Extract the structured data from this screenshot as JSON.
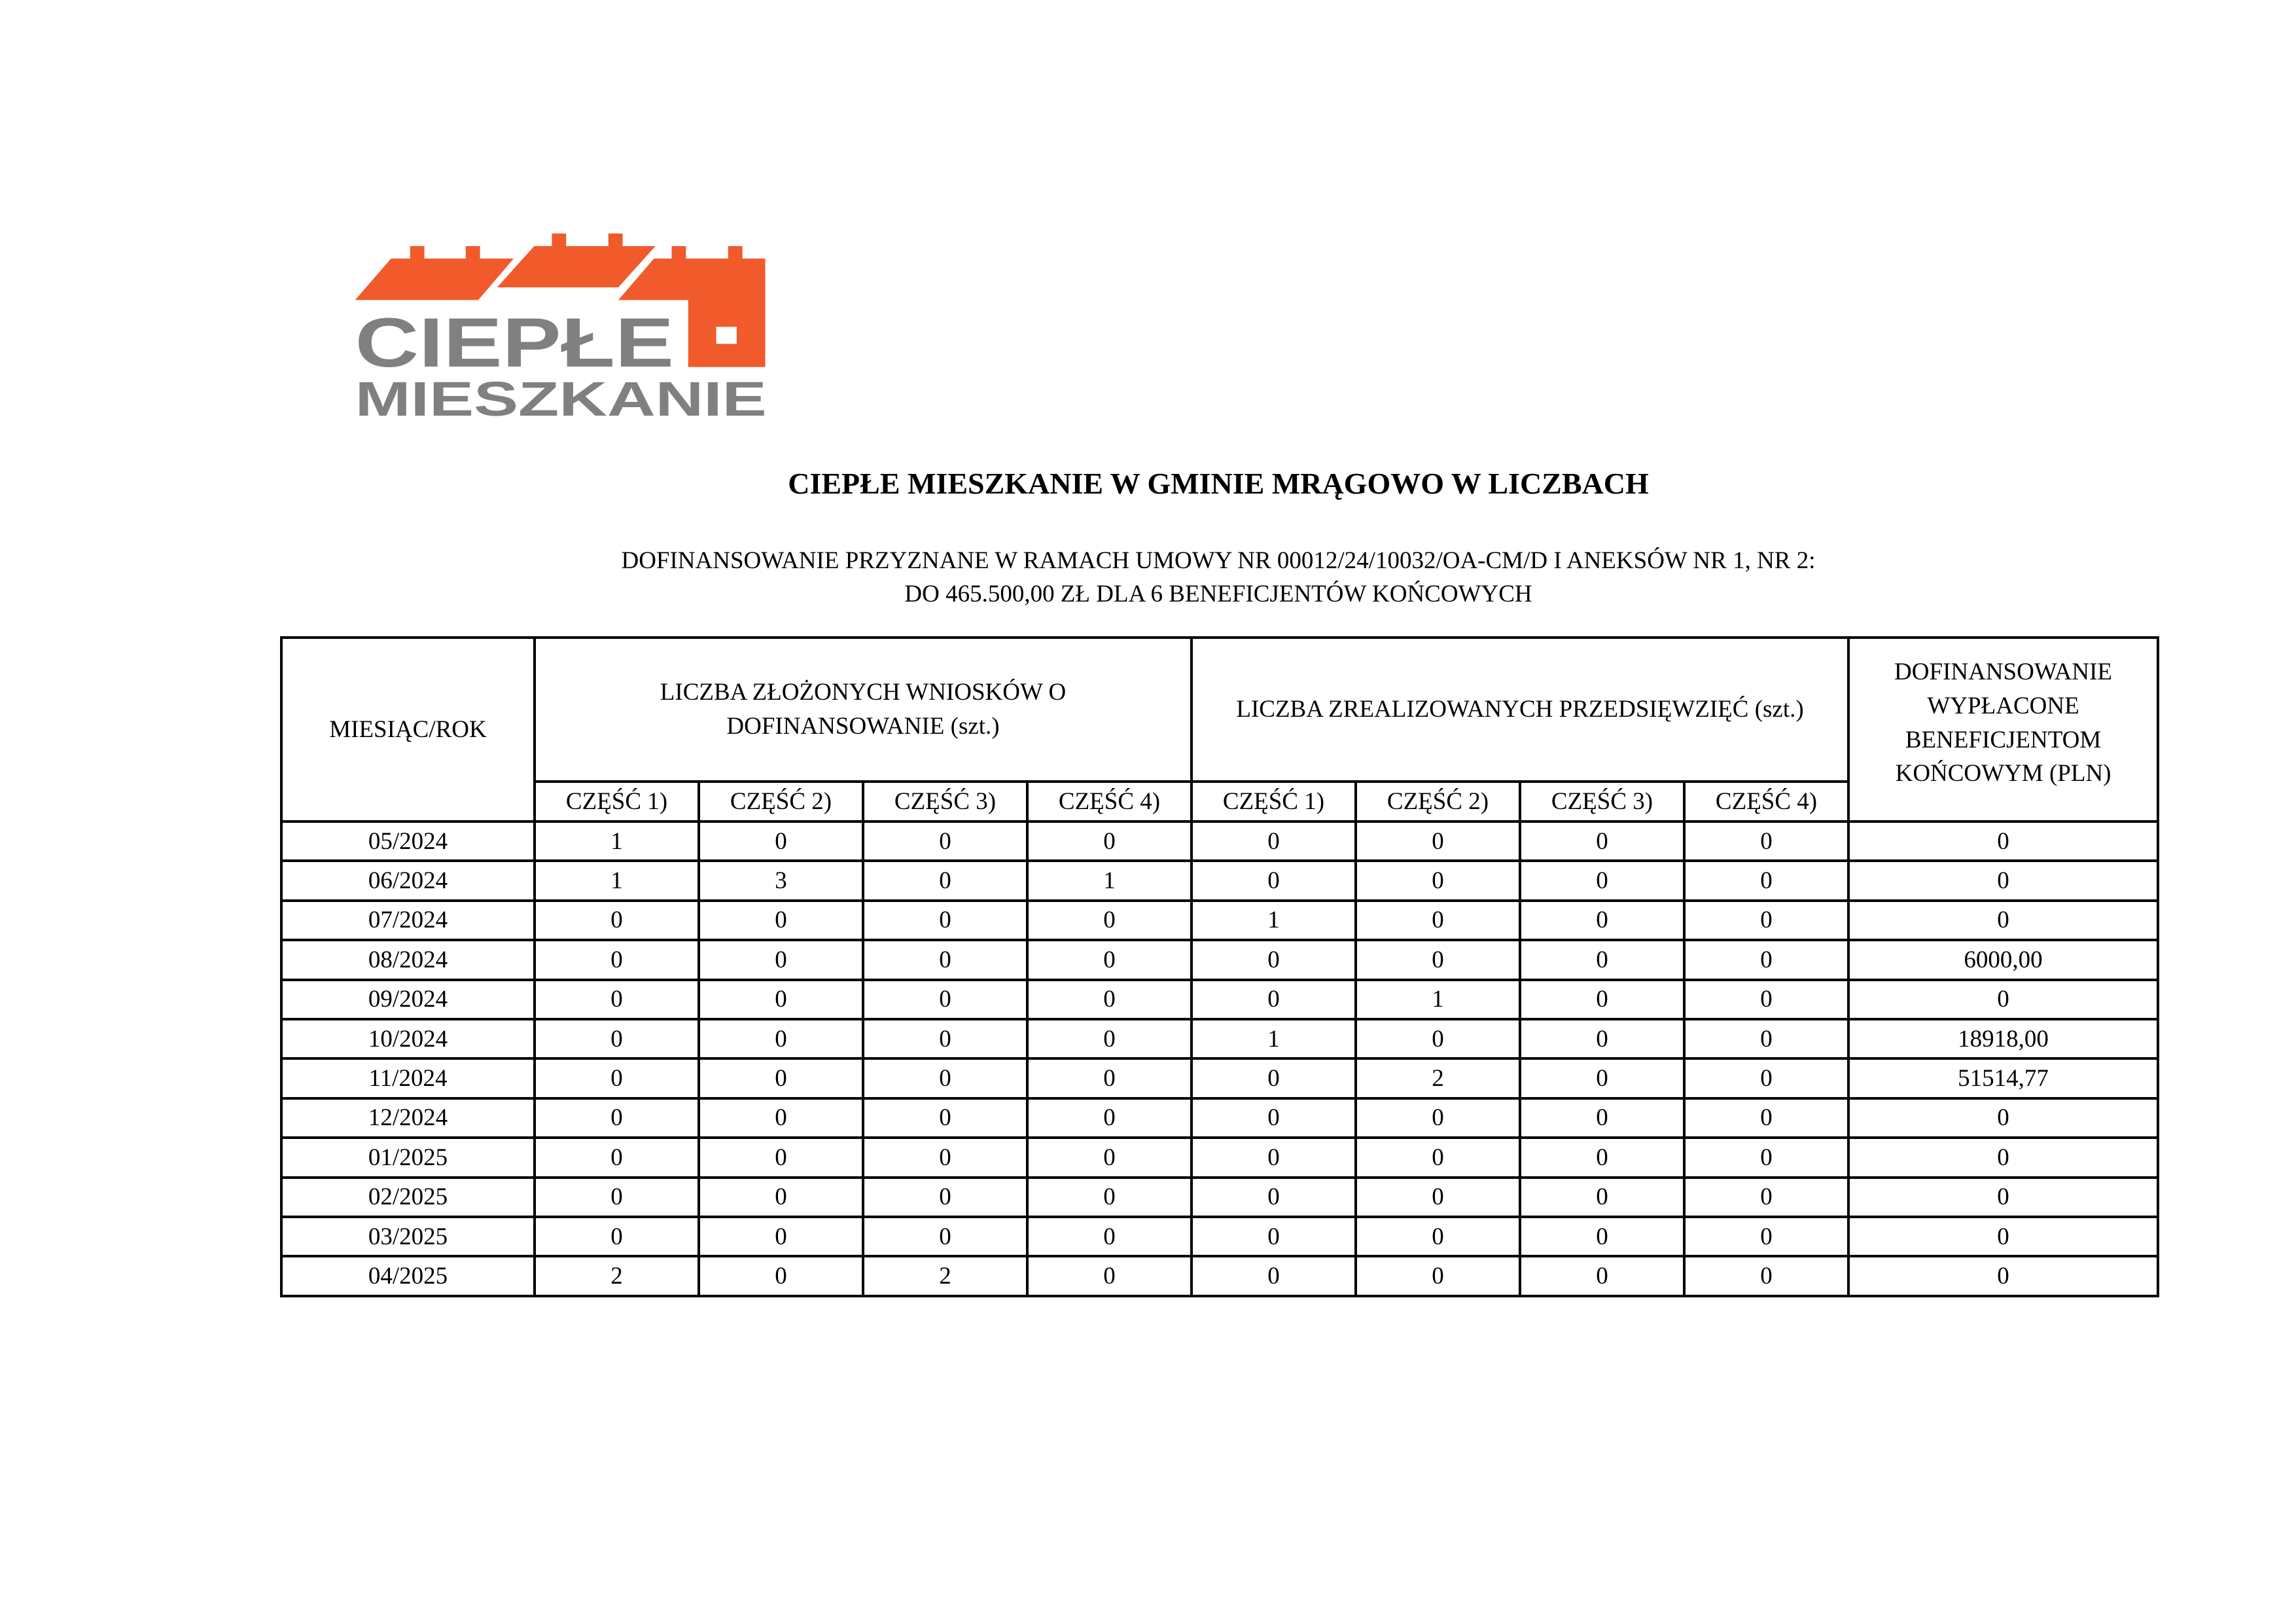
{
  "logo": {
    "line1": "CIEPŁE",
    "line2": "MIESZKANIE",
    "roof_color": "#F15A2B",
    "text_color": "#808080"
  },
  "title": "CIEPŁE MIESZKANIE W GMINIE MRĄGOWO W LICZBACH",
  "subtitle_line1": "DOFINANSOWANIE PRZYZNANE W RAMACH UMOWY NR 00012/24/10032/OA-CM/D I ANEKSÓW NR 1, NR 2:",
  "subtitle_line2": "DO 465.500,00 ZŁ DLA 6 BENEFICJENTÓW KOŃCOWYCH",
  "table": {
    "headers": {
      "month": "MIESIĄC/ROK",
      "applications": "LICZBA ZŁOŻONYCH WNIOSKÓW O DOFINANSOWANIE (szt.)",
      "projects": "LICZBA ZREALIZOWANYCH PRZEDSIĘWZIĘĆ (szt.)",
      "paid": "DOFINANSOWANIE WYPŁACONE BENEFICJENTOM KOŃCOWYM (PLN)",
      "parts": [
        "CZĘŚĆ 1)",
        "CZĘŚĆ 2)",
        "CZĘŚĆ 3)",
        "CZĘŚĆ 4)"
      ]
    },
    "rows": [
      [
        "05/2024",
        "1",
        "0",
        "0",
        "0",
        "0",
        "0",
        "0",
        "0",
        "0"
      ],
      [
        "06/2024",
        "1",
        "3",
        "0",
        "1",
        "0",
        "0",
        "0",
        "0",
        "0"
      ],
      [
        "07/2024",
        "0",
        "0",
        "0",
        "0",
        "1",
        "0",
        "0",
        "0",
        "0"
      ],
      [
        "08/2024",
        "0",
        "0",
        "0",
        "0",
        "0",
        "0",
        "0",
        "0",
        "6000,00"
      ],
      [
        "09/2024",
        "0",
        "0",
        "0",
        "0",
        "0",
        "1",
        "0",
        "0",
        "0"
      ],
      [
        "10/2024",
        "0",
        "0",
        "0",
        "0",
        "1",
        "0",
        "0",
        "0",
        "18918,00"
      ],
      [
        "11/2024",
        "0",
        "0",
        "0",
        "0",
        "0",
        "2",
        "0",
        "0",
        "51514,77"
      ],
      [
        "12/2024",
        "0",
        "0",
        "0",
        "0",
        "0",
        "0",
        "0",
        "0",
        "0"
      ],
      [
        "01/2025",
        "0",
        "0",
        "0",
        "0",
        "0",
        "0",
        "0",
        "0",
        "0"
      ],
      [
        "02/2025",
        "0",
        "0",
        "0",
        "0",
        "0",
        "0",
        "0",
        "0",
        "0"
      ],
      [
        "03/2025",
        "0",
        "0",
        "0",
        "0",
        "0",
        "0",
        "0",
        "0",
        "0"
      ],
      [
        "04/2025",
        "2",
        "0",
        "2",
        "0",
        "0",
        "0",
        "0",
        "0",
        "0"
      ]
    ]
  }
}
